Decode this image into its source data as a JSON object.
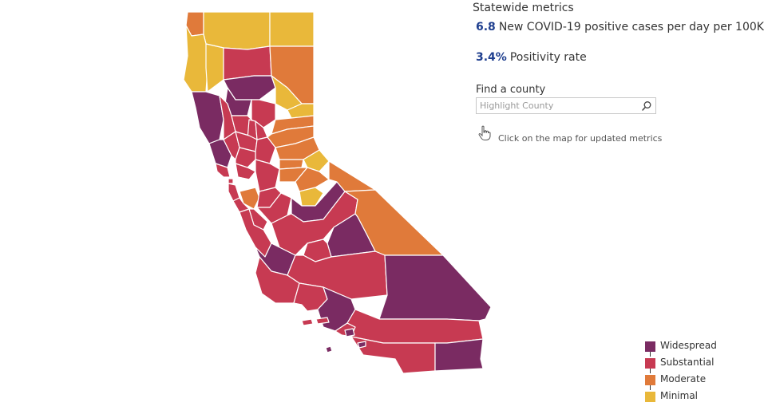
{
  "map": {
    "region": "California",
    "tiers": {
      "widespread": "#7a2b62",
      "substantial": "#c73a52",
      "moderate": "#e07a3a",
      "minimal": "#e9b83a"
    }
  },
  "panel": {
    "title": "Statewide metrics",
    "metrics": [
      {
        "value": "6.8",
        "label": "New COVID-19 positive cases per day per 100K"
      },
      {
        "value": "3.4%",
        "label": "Positivity rate"
      }
    ],
    "find_label": "Find a county",
    "search_placeholder": "Highlight County",
    "search_icon": "search-icon",
    "hint_icon": "hand-pointer-icon",
    "hint": "Click on the map for updated metrics"
  },
  "legend": {
    "items": [
      {
        "label": "Widespread",
        "color": "#7a2b62"
      },
      {
        "label": "Substantial",
        "color": "#c73a52"
      },
      {
        "label": "Moderate",
        "color": "#e07a3a"
      },
      {
        "label": "Minimal",
        "color": "#e9b83a"
      }
    ]
  }
}
